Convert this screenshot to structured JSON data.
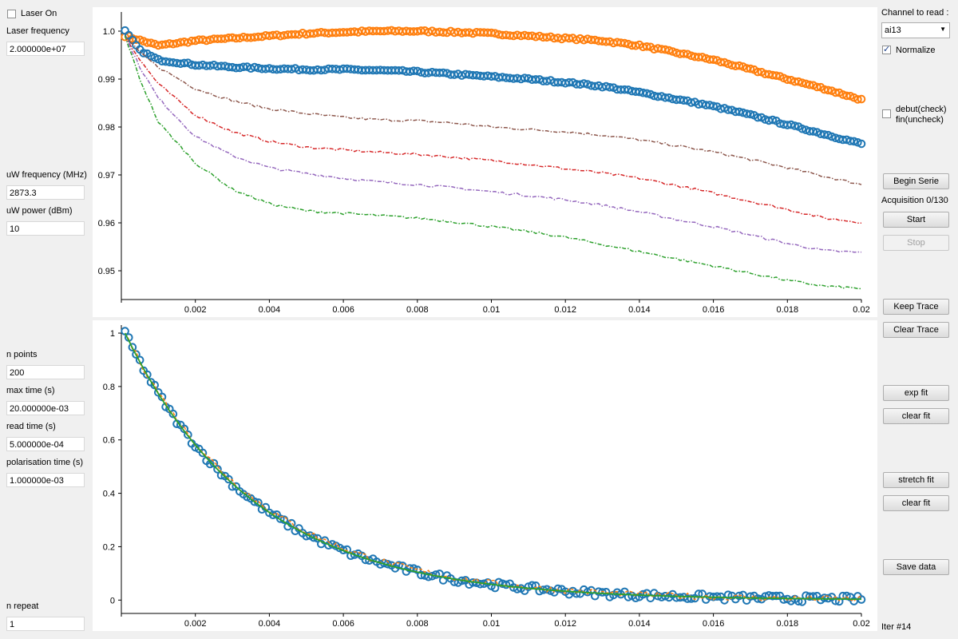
{
  "left_panel": {
    "laser_on_label": "Laser On",
    "laser_on_checked": false,
    "laser_frequency_label": "Laser frequency",
    "laser_frequency_value": "2.000000e+07",
    "uw_frequency_label": "uW frequency (MHz)",
    "uw_frequency_value": "2873.3",
    "uw_power_label": "uW power (dBm)",
    "uw_power_value": "10",
    "n_points_label": "n points",
    "n_points_value": "200",
    "max_time_label": "max time (s)",
    "max_time_value": "20.000000e-03",
    "read_time_label": "read time (s)",
    "read_time_value": "5.000000e-04",
    "polarisation_time_label": "polarisation time (s)",
    "polarisation_time_value": "1.000000e-03",
    "n_repeat_label": "n repeat",
    "n_repeat_value": "1"
  },
  "right_panel": {
    "channel_label": "Channel to read :",
    "channel_value": "ai13",
    "normalize_label": "Normalize",
    "normalize_checked": true,
    "debut_label_line1": "debut(check)",
    "debut_label_line2": "fin(uncheck)",
    "debut_checked": false,
    "begin_serie": "Begin Serie",
    "acquisition_status": "Acquisition 0/130",
    "start": "Start",
    "stop": "Stop",
    "keep_trace": "Keep Trace",
    "clear_trace": "Clear Trace",
    "exp_fit": "exp fit",
    "clear_fit_1": "clear fit",
    "stretch_fit": "stretch fit",
    "clear_fit_2": "clear fit",
    "save_data": "Save data",
    "iter_label": "Iter #14"
  },
  "colors": {
    "blue": "#1f77b4",
    "orange": "#ff7f0e",
    "green": "#2ca02c",
    "red": "#d62728",
    "purple": "#9467bd",
    "brown": "#8c564b"
  },
  "chart_data": [
    {
      "type": "line",
      "xlim": [
        0,
        0.02
      ],
      "ylim": [
        0.944,
        1.004
      ],
      "x_ticks": [
        "0.002",
        "0.004",
        "0.006",
        "0.008",
        "0.01",
        "0.012",
        "0.014",
        "0.016",
        "0.018",
        "0.02"
      ],
      "y_ticks": [
        "0.95",
        "0.96",
        "0.97",
        "0.98",
        "0.99",
        "1.0"
      ],
      "series": [
        {
          "color": "orange",
          "style": "circles",
          "x": [
            0.0001,
            0.001,
            0.002,
            0.003,
            0.004,
            0.005,
            0.006,
            0.007,
            0.008,
            0.009,
            0.01,
            0.011,
            0.012,
            0.013,
            0.014,
            0.015,
            0.016,
            0.017,
            0.018,
            0.019,
            0.02
          ],
          "y": [
            0.999,
            0.997,
            0.998,
            0.9985,
            0.999,
            0.9995,
            0.9998,
            1.0,
            1.0,
            0.9998,
            0.9995,
            0.999,
            0.9985,
            0.998,
            0.997,
            0.9955,
            0.994,
            0.992,
            0.99,
            0.988,
            0.9857
          ]
        },
        {
          "color": "blue",
          "style": "circles",
          "x": [
            0.0001,
            0.0005,
            0.001,
            0.002,
            0.003,
            0.004,
            0.005,
            0.006,
            0.007,
            0.008,
            0.009,
            0.01,
            0.011,
            0.012,
            0.013,
            0.014,
            0.015,
            0.016,
            0.017,
            0.018,
            0.019,
            0.02
          ],
          "y": [
            1.0,
            0.996,
            0.994,
            0.993,
            0.9925,
            0.9922,
            0.992,
            0.992,
            0.9918,
            0.9915,
            0.991,
            0.9905,
            0.99,
            0.9893,
            0.9885,
            0.9872,
            0.9858,
            0.9843,
            0.9825,
            0.9805,
            0.9785,
            0.9765
          ]
        },
        {
          "color": "brown",
          "style": "dashdot",
          "x": [
            0.0001,
            0.0005,
            0.001,
            0.002,
            0.003,
            0.004,
            0.005,
            0.006,
            0.007,
            0.008,
            0.009,
            0.01,
            0.011,
            0.012,
            0.013,
            0.014,
            0.015,
            0.016,
            0.017,
            0.018,
            0.019,
            0.02
          ],
          "y": [
            0.999,
            0.9955,
            0.9925,
            0.988,
            0.9855,
            0.9838,
            0.9828,
            0.982,
            0.9815,
            0.9813,
            0.9808,
            0.98,
            0.9795,
            0.979,
            0.9783,
            0.9773,
            0.9761,
            0.9748,
            0.9732,
            0.9715,
            0.9697,
            0.968
          ]
        },
        {
          "color": "red",
          "style": "dashdot",
          "x": [
            0.0001,
            0.0005,
            0.001,
            0.002,
            0.003,
            0.004,
            0.005,
            0.006,
            0.007,
            0.008,
            0.009,
            0.01,
            0.011,
            0.012,
            0.013,
            0.014,
            0.015,
            0.016,
            0.017,
            0.018,
            0.019,
            0.02
          ],
          "y": [
            0.999,
            0.994,
            0.989,
            0.9825,
            0.979,
            0.977,
            0.9758,
            0.9752,
            0.9747,
            0.9743,
            0.9737,
            0.973,
            0.9722,
            0.9713,
            0.9704,
            0.9693,
            0.9678,
            0.9662,
            0.9645,
            0.9628,
            0.961,
            0.9601
          ]
        },
        {
          "color": "purple",
          "style": "dashdot",
          "x": [
            0.0001,
            0.0005,
            0.001,
            0.002,
            0.003,
            0.004,
            0.005,
            0.006,
            0.007,
            0.008,
            0.009,
            0.01,
            0.011,
            0.012,
            0.013,
            0.014,
            0.015,
            0.016,
            0.017,
            0.018,
            0.019,
            0.02
          ],
          "y": [
            0.999,
            0.9925,
            0.986,
            0.978,
            0.974,
            0.9715,
            0.9703,
            0.9693,
            0.9685,
            0.968,
            0.9673,
            0.9665,
            0.9657,
            0.9648,
            0.9637,
            0.9623,
            0.9607,
            0.9592,
            0.9575,
            0.9557,
            0.9542,
            0.9538
          ]
        },
        {
          "color": "green",
          "style": "dashdot",
          "x": [
            0.0001,
            0.0005,
            0.001,
            0.002,
            0.003,
            0.004,
            0.005,
            0.006,
            0.007,
            0.008,
            0.009,
            0.01,
            0.011,
            0.012,
            0.013,
            0.014,
            0.015,
            0.016,
            0.017,
            0.018,
            0.019,
            0.02
          ],
          "y": [
            0.999,
            0.99,
            0.981,
            0.9725,
            0.967,
            0.964,
            0.9625,
            0.962,
            0.9615,
            0.961,
            0.9602,
            0.9592,
            0.9582,
            0.957,
            0.9555,
            0.954,
            0.9525,
            0.951,
            0.9495,
            0.948,
            0.9468,
            0.9463
          ]
        }
      ]
    },
    {
      "type": "line",
      "xlim": [
        0,
        0.02
      ],
      "ylim": [
        -0.05,
        1.03
      ],
      "x_ticks": [
        "0.002",
        "0.004",
        "0.006",
        "0.008",
        "0.01",
        "0.012",
        "0.014",
        "0.016",
        "0.018",
        "0.02"
      ],
      "y_ticks": [
        "0",
        "0.2",
        "0.4",
        "0.6",
        "0.8",
        "1"
      ],
      "series": [
        {
          "color": "blue",
          "style": "circles",
          "fn": "exp",
          "tau": 0.0035,
          "noise": 0.012
        },
        {
          "color": "orange",
          "style": "dashed",
          "fn": "exp",
          "tau": 0.0036,
          "noise": 0.012
        },
        {
          "color": "green",
          "style": "solid",
          "fn": "exp",
          "tau": 0.0035,
          "noise": 0.0
        }
      ]
    }
  ]
}
